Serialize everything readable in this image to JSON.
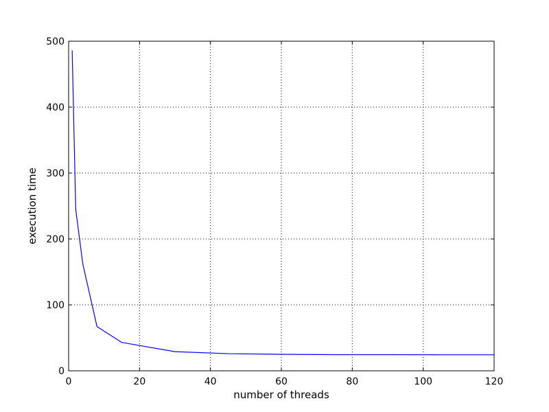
{
  "chart_data": {
    "type": "line",
    "title": "",
    "xlabel": "number of threads",
    "ylabel": "execution time",
    "xlim": [
      0,
      120
    ],
    "ylim": [
      0,
      500
    ],
    "xticks": [
      0,
      20,
      40,
      60,
      80,
      100,
      120
    ],
    "yticks": [
      0,
      100,
      200,
      300,
      400,
      500
    ],
    "grid": true,
    "series": [
      {
        "color": "#0000ff",
        "x": [
          1,
          2,
          4,
          8,
          15,
          30,
          45,
          60,
          75,
          90,
          105,
          120
        ],
        "y": [
          486,
          245,
          162,
          67,
          43,
          29,
          26,
          25,
          24.5,
          24.5,
          24.3,
          24.3
        ]
      }
    ]
  }
}
